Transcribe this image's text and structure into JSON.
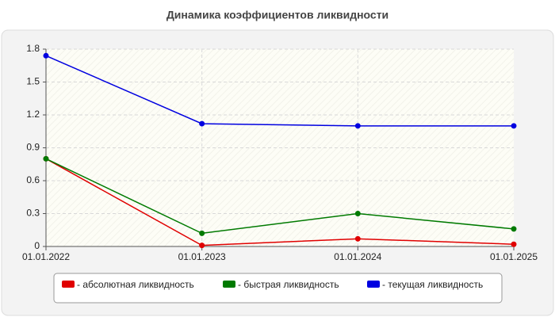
{
  "chart_data": {
    "type": "line",
    "title": "Динамика коэффициентов ликвидности",
    "categories": [
      "01.01.2022",
      "01.01.2023",
      "01.01.2024",
      "01.01.2025"
    ],
    "series": [
      {
        "name": "- абсолютная ликвидность",
        "color": "#e00000",
        "values": [
          0.8,
          0.01,
          0.07,
          0.02
        ]
      },
      {
        "name": "- быстрая ликвидность",
        "color": "#007a00",
        "values": [
          0.8,
          0.12,
          0.3,
          0.16
        ]
      },
      {
        "name": "- текущая ликвидность",
        "color": "#0000e0",
        "values": [
          1.74,
          1.12,
          1.1,
          1.1
        ]
      }
    ],
    "ylim": [
      0,
      1.8
    ],
    "yticks": [
      0,
      0.3,
      0.6,
      0.9,
      1.2,
      1.5,
      1.8
    ],
    "grid": true,
    "legend": "bottom"
  }
}
